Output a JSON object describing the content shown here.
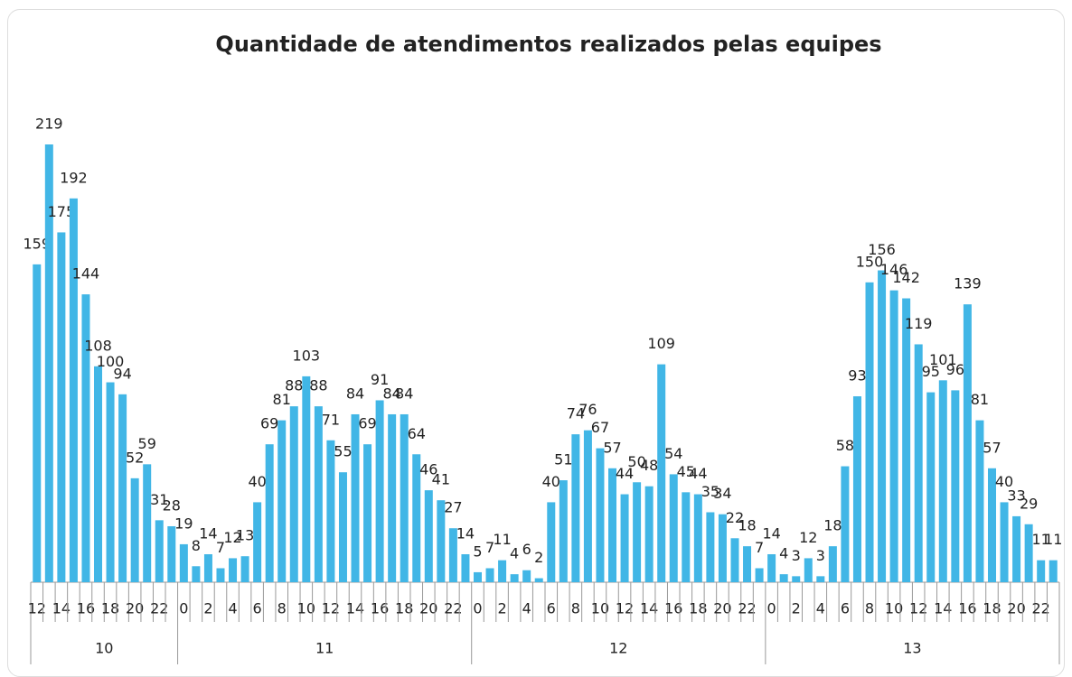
{
  "chart_data": {
    "type": "bar",
    "title": "Quantidade de atendimentos realizados pelas equipes",
    "color": "#41b6e6",
    "groups": [
      {
        "label": "10",
        "categories": [
          "12",
          null,
          "14",
          null,
          "16",
          null,
          "18",
          null,
          "20",
          null,
          "22",
          null
        ],
        "values": [
          159,
          219,
          175,
          192,
          144,
          108,
          100,
          94,
          52,
          59,
          31,
          28
        ]
      },
      {
        "label": "11",
        "categories": [
          "0",
          null,
          "2",
          null,
          "4",
          null,
          "6",
          null,
          "8",
          null,
          "10",
          null,
          "12",
          null,
          "14",
          null,
          "16",
          null,
          "18",
          null,
          "20",
          null,
          "22",
          null
        ],
        "values": [
          19,
          8,
          14,
          7,
          12,
          13,
          40,
          69,
          81,
          88,
          103,
          88,
          71,
          55,
          84,
          69,
          91,
          84,
          84,
          64,
          46,
          41,
          27,
          14
        ]
      },
      {
        "label": "12",
        "categories": [
          "0",
          null,
          "2",
          null,
          "4",
          null,
          "6",
          null,
          "8",
          null,
          "10",
          null,
          "12",
          null,
          "14",
          null,
          "16",
          null,
          "18",
          null,
          "20",
          null,
          "22",
          null
        ],
        "values": [
          5,
          7,
          11,
          4,
          6,
          2,
          40,
          51,
          74,
          76,
          67,
          57,
          44,
          50,
          48,
          109,
          54,
          45,
          44,
          35,
          34,
          22,
          18,
          7
        ]
      },
      {
        "label": "13",
        "categories": [
          "0",
          null,
          "2",
          null,
          "4",
          null,
          "6",
          null,
          "8",
          null,
          "10",
          null,
          "12",
          null,
          "14",
          null,
          "16",
          null,
          "18",
          null,
          "20",
          null,
          "22",
          null
        ],
        "values": [
          14,
          4,
          3,
          12,
          3,
          18,
          58,
          93,
          150,
          156,
          146,
          142,
          119,
          95,
          101,
          96,
          139,
          81,
          57,
          40,
          33,
          29,
          11,
          11
        ]
      }
    ]
  }
}
